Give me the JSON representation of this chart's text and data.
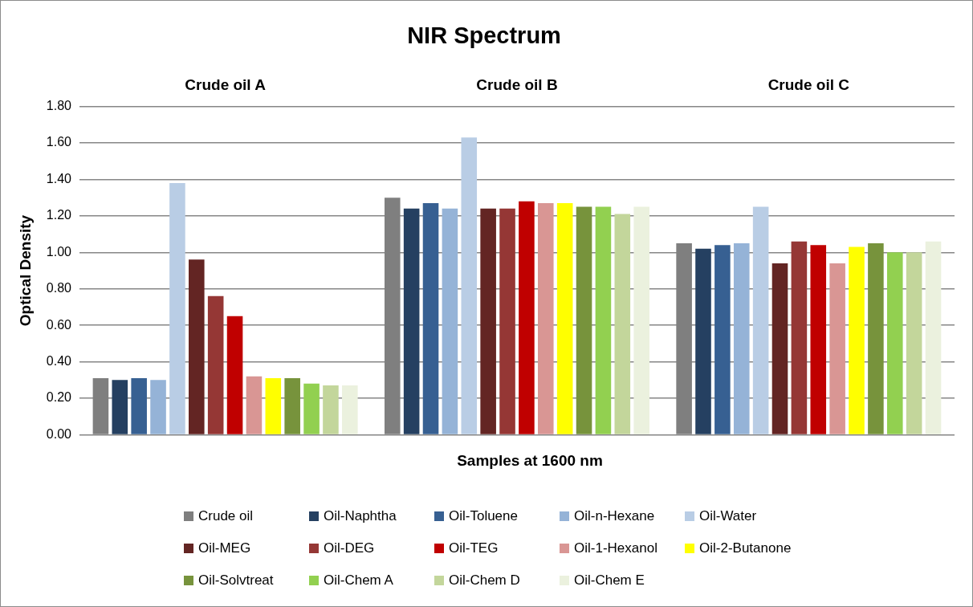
{
  "chart_data": {
    "type": "bar",
    "title": "NIR Spectrum",
    "xlabel": "Samples at 1600 nm",
    "ylabel": "Optical Density",
    "categories": [
      "Crude oil A",
      "Crude oil B",
      "Crude oil C"
    ],
    "series": [
      {
        "name": "Crude oil",
        "color": "#7f7f7f",
        "values": [
          0.31,
          1.3,
          1.05
        ]
      },
      {
        "name": "Oil-Naphtha",
        "color": "#254061",
        "values": [
          0.3,
          1.24,
          1.02
        ]
      },
      {
        "name": "Oil-Toluene",
        "color": "#376092",
        "values": [
          0.31,
          1.27,
          1.04
        ]
      },
      {
        "name": "Oil-n-Hexane",
        "color": "#95b3d7",
        "values": [
          0.3,
          1.24,
          1.05
        ]
      },
      {
        "name": "Oil-Water",
        "color": "#b9cde5",
        "values": [
          1.38,
          1.63,
          1.25
        ]
      },
      {
        "name": "Oil-MEG",
        "color": "#632523",
        "values": [
          0.96,
          1.24,
          0.94
        ]
      },
      {
        "name": "Oil-DEG",
        "color": "#953735",
        "values": [
          0.76,
          1.24,
          1.06
        ]
      },
      {
        "name": "Oil-TEG",
        "color": "#c00000",
        "values": [
          0.65,
          1.28,
          1.04
        ]
      },
      {
        "name": "Oil-1-Hexanol",
        "color": "#d99694",
        "values": [
          0.32,
          1.27,
          0.94
        ]
      },
      {
        "name": "Oil-2-Butanone",
        "color": "#ffff00",
        "values": [
          0.31,
          1.27,
          1.03
        ]
      },
      {
        "name": "Oil-Solvtreat",
        "color": "#77933c",
        "values": [
          0.31,
          1.25,
          1.05
        ]
      },
      {
        "name": "Oil-Chem A",
        "color": "#92d050",
        "values": [
          0.28,
          1.25,
          1.0
        ]
      },
      {
        "name": "Oil-Chem D",
        "color": "#c3d69b",
        "values": [
          0.27,
          1.21,
          1.0
        ]
      },
      {
        "name": "Oil-Chem E",
        "color": "#ebf1de",
        "values": [
          0.27,
          1.25,
          1.06
        ]
      }
    ],
    "ylim": [
      0,
      1.8
    ],
    "yticks": [
      {
        "value": 0,
        "label": "0.00"
      },
      {
        "value": 0.2,
        "label": "0.20"
      },
      {
        "value": 0.4,
        "label": "0.40"
      },
      {
        "value": 0.6,
        "label": "0.60"
      },
      {
        "value": 0.8,
        "label": "0.80"
      },
      {
        "value": 1.0,
        "label": "1.00"
      },
      {
        "value": 1.2,
        "label": "1.20"
      },
      {
        "value": 1.4,
        "label": "1.40"
      },
      {
        "value": 1.6,
        "label": "1.60"
      },
      {
        "value": 1.8,
        "label": "1.80"
      }
    ],
    "grid": "y",
    "legend": "bottom"
  }
}
